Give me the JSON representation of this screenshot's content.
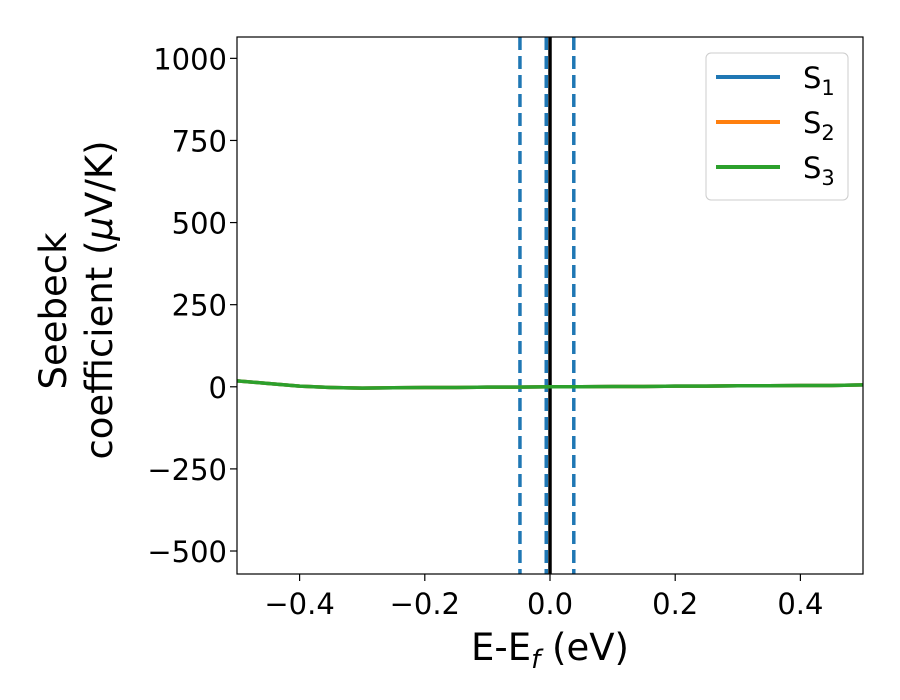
{
  "chart_data": {
    "type": "line",
    "title": "",
    "xlabel": "E-E",
    "xlabel_sub": "f",
    "xlabel_unit": " (eV)",
    "ylabel_line1": "Seebeck",
    "ylabel_line2": "coefficient  (",
    "ylabel_mu": "μ",
    "ylabel_unit": "V/K)",
    "xlim": [
      -0.5,
      0.5
    ],
    "ylim": [
      -570,
      1065
    ],
    "xticks": [
      -0.4,
      -0.2,
      0.0,
      0.2,
      0.4
    ],
    "xtick_labels": [
      "−0.4",
      "−0.2",
      "0.0",
      "0.2",
      "0.4"
    ],
    "yticks": [
      -500,
      -250,
      0,
      250,
      500,
      750,
      1000
    ],
    "ytick_labels": [
      "−500",
      "−250",
      "0",
      "250",
      "500",
      "750",
      "1000"
    ],
    "grid": false,
    "legend_position": "top-right",
    "x": [
      -0.5,
      -0.45,
      -0.4,
      -0.35,
      -0.3,
      -0.25,
      -0.2,
      -0.15,
      -0.1,
      -0.05,
      0.0,
      0.05,
      0.1,
      0.15,
      0.2,
      0.25,
      0.3,
      0.35,
      0.4,
      0.45,
      0.5
    ],
    "series": [
      {
        "name": "S",
        "sub": "1",
        "color": "#1f77b4",
        "values": [
          18,
          10,
          2,
          -2,
          -4,
          -3,
          -2,
          -2,
          -1,
          -1,
          0,
          0,
          1,
          1,
          2,
          2,
          3,
          3,
          4,
          4,
          6
        ]
      },
      {
        "name": "S",
        "sub": "2",
        "color": "#ff7f0e",
        "values": [
          18,
          10,
          2,
          -2,
          -4,
          -3,
          -2,
          -2,
          -1,
          -1,
          0,
          0,
          1,
          1,
          2,
          2,
          3,
          3,
          4,
          4,
          6
        ]
      },
      {
        "name": "S",
        "sub": "3",
        "color": "#2ca02c",
        "values": [
          18,
          10,
          2,
          -2,
          -4,
          -3,
          -2,
          -2,
          -1,
          -1,
          0,
          0,
          1,
          1,
          2,
          2,
          3,
          3,
          4,
          4,
          6
        ]
      }
    ],
    "vlines": [
      {
        "x": -0.048,
        "style": "dashed",
        "color": "#1f77b4"
      },
      {
        "x": -0.006,
        "style": "dashed",
        "color": "#1f77b4"
      },
      {
        "x": 0.038,
        "style": "dashed",
        "color": "#1f77b4"
      },
      {
        "x": 0.0,
        "style": "solid",
        "color": "#000000"
      }
    ]
  }
}
